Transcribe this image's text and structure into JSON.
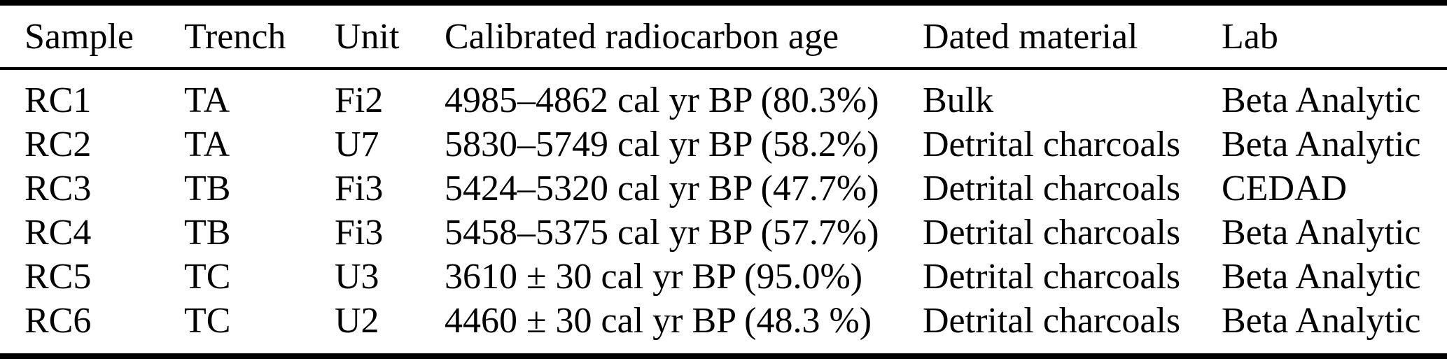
{
  "table": {
    "headers": {
      "sample": "Sample",
      "trench": "Trench",
      "unit": "Unit",
      "age": "Calibrated radiocarbon age",
      "material": "Dated material",
      "lab": "Lab"
    },
    "rows": [
      {
        "sample": "RC1",
        "trench": "TA",
        "unit": "Fi2",
        "age": "4985–4862 cal yr BP (80.3%)",
        "material": "Bulk",
        "lab": "Beta Analytic"
      },
      {
        "sample": "RC2",
        "trench": "TA",
        "unit": "U7",
        "age": "5830–5749 cal yr BP (58.2%)",
        "material": "Detrital charcoals",
        "lab": "Beta Analytic"
      },
      {
        "sample": "RC3",
        "trench": "TB",
        "unit": "Fi3",
        "age": "5424–5320 cal yr BP (47.7%)",
        "material": "Detrital charcoals",
        "lab": "CEDAD"
      },
      {
        "sample": "RC4",
        "trench": "TB",
        "unit": "Fi3",
        "age": "5458–5375 cal yr BP (57.7%)",
        "material": "Detrital charcoals",
        "lab": "Beta Analytic"
      },
      {
        "sample": "RC5",
        "trench": "TC",
        "unit": "U3",
        "age": "3610 ± 30 cal yr BP (95.0%)",
        "material": "Detrital charcoals",
        "lab": "Beta Analytic"
      },
      {
        "sample": "RC6",
        "trench": "TC",
        "unit": "U2",
        "age": "4460 ± 30 cal yr BP (48.3 %)",
        "material": "Detrital charcoals",
        "lab": "Beta Analytic"
      }
    ],
    "colors": {
      "text": "#000000",
      "rule": "#000000",
      "background": "#ffffff"
    }
  }
}
